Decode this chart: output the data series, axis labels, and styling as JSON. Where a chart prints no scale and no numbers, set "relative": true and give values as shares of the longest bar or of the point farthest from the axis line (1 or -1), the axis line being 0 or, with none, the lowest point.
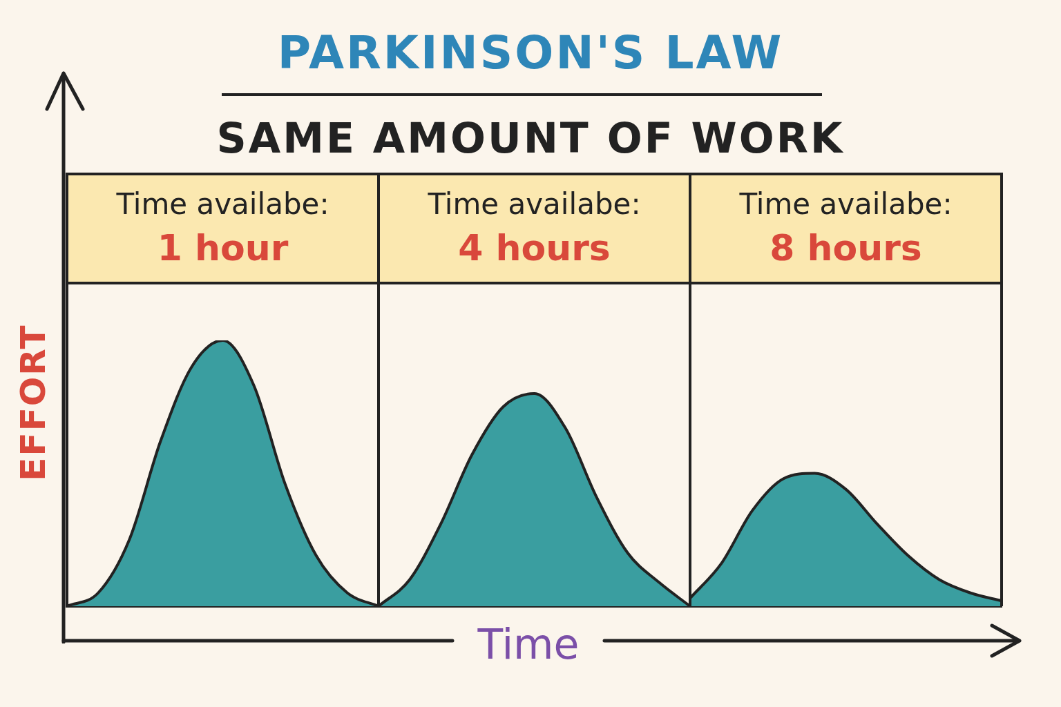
{
  "chart_data": {
    "type": "area",
    "title": "PARKINSON'S LAW",
    "subtitle": "SAME AMOUNT OF WORK",
    "xlabel": "Time",
    "ylabel": "EFFORT",
    "relative": true,
    "categories": [
      null,
      null,
      null,
      null,
      null,
      null,
      null,
      null,
      null,
      null,
      null,
      null,
      null,
      null,
      null,
      null,
      null,
      null,
      null,
      null,
      null,
      null,
      null,
      null,
      null,
      null,
      null,
      null,
      null,
      null,
      null
    ],
    "series": [
      {
        "color": "#3a9ea0",
        "values": [
          0,
          0.05,
          0.25,
          0.62,
          0.9,
          1,
          0.83,
          0.46,
          0.19,
          0.05,
          0,
          null,
          null,
          null,
          null,
          null,
          null,
          null,
          null,
          null,
          null,
          null,
          null,
          null,
          null,
          null,
          null,
          null,
          null,
          null,
          null
        ]
      },
      {
        "color": "#3a9ea0",
        "values": [
          null,
          null,
          null,
          null,
          null,
          null,
          null,
          null,
          null,
          null,
          0,
          0.1,
          0.31,
          0.57,
          0.75,
          0.8,
          0.67,
          0.41,
          0.2,
          0.09,
          0,
          null,
          null,
          null,
          null,
          null,
          null,
          null,
          null,
          null,
          null
        ]
      },
      {
        "color": "#3a9ea0",
        "values": [
          null,
          null,
          null,
          null,
          null,
          null,
          null,
          null,
          null,
          null,
          null,
          null,
          null,
          null,
          null,
          null,
          null,
          null,
          null,
          null,
          0.03,
          0.16,
          0.36,
          0.48,
          0.5,
          0.44,
          0.31,
          0.19,
          0.1,
          0.05,
          0.02
        ]
      }
    ],
    "annotations": [
      "Time availabe:",
      "1 hour",
      "Time availabe:",
      "4 hours",
      "Time availabe:",
      "8 hours"
    ]
  }
}
